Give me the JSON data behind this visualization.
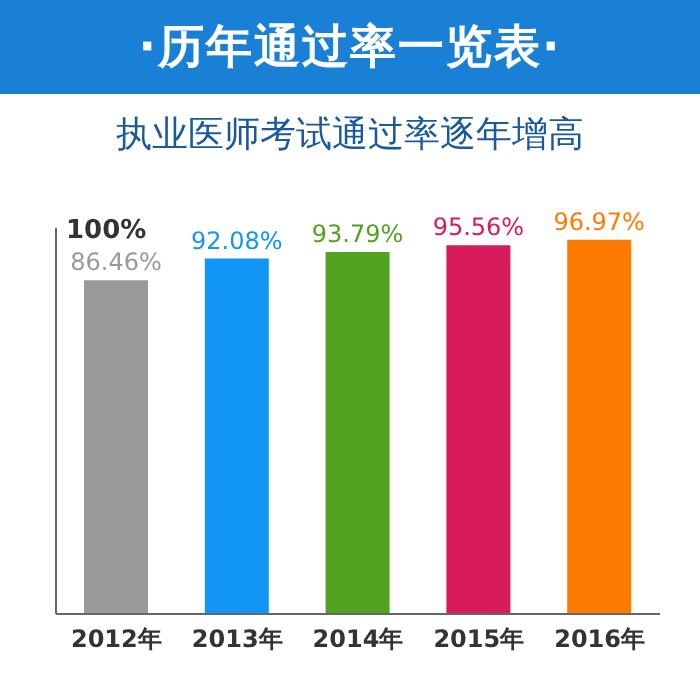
{
  "chart_data": {
    "type": "bar",
    "title": "·历年通过率一览表·",
    "subtitle": "执业医师考试通过率逐年增高",
    "categories": [
      "2012年",
      "2013年",
      "2014年",
      "2015年",
      "2016年"
    ],
    "values": [
      86.46,
      92.08,
      93.79,
      95.56,
      96.97
    ],
    "colors": [
      "#999999",
      "#1296f5",
      "#52a31f",
      "#d81b5a",
      "#ff7a00"
    ],
    "value_labels": [
      "86.46%",
      "92.08%",
      "93.79%",
      "95.56%",
      "96.97%"
    ],
    "annotations": [
      "100%"
    ],
    "grid": false,
    "legend": false
  }
}
